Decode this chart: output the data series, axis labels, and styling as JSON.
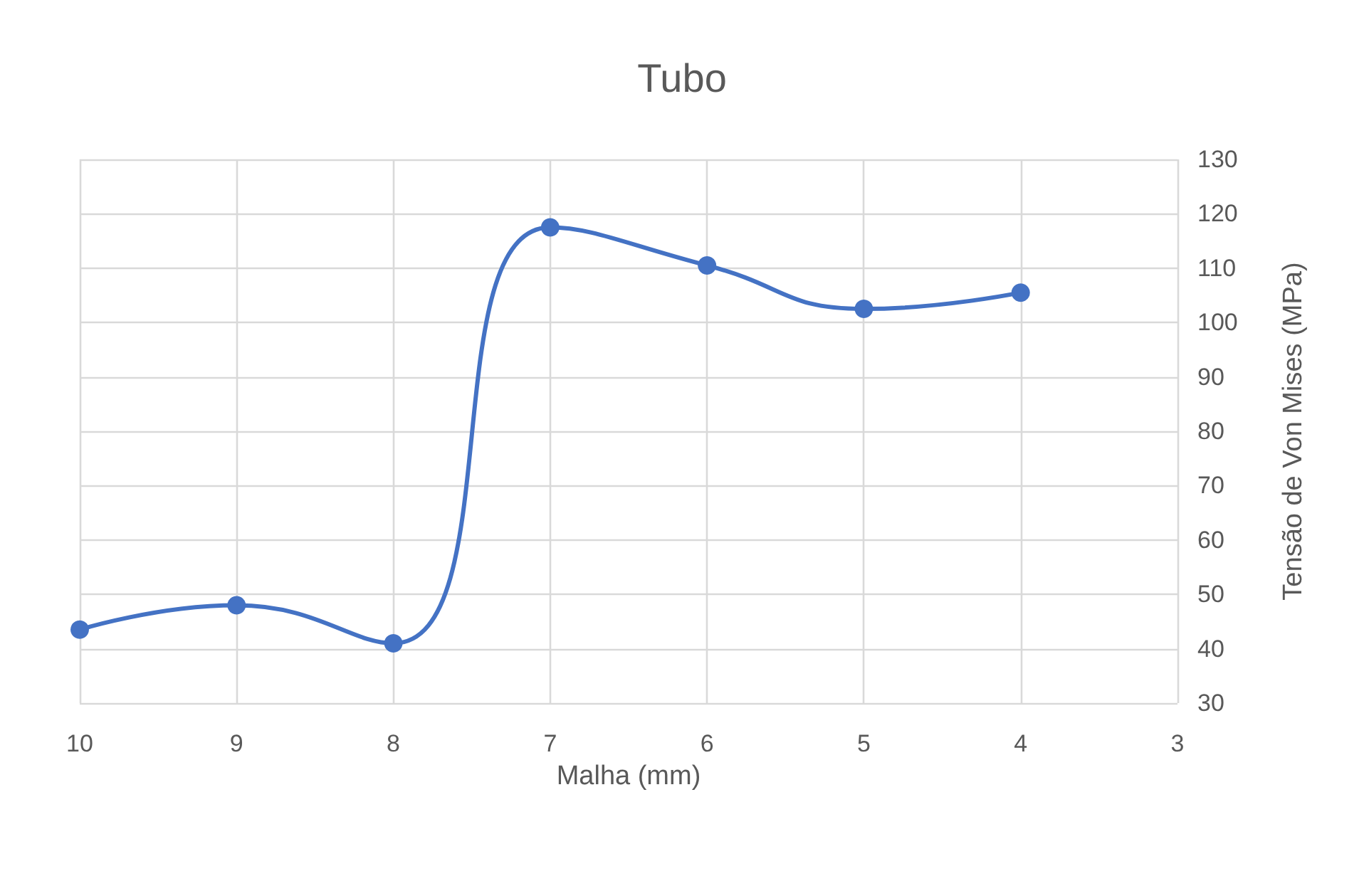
{
  "chart_data": {
    "type": "line",
    "title": "Tubo",
    "xlabel": "Malha (mm)",
    "ylabel": "Tensão de Von Mises (MPa)",
    "x": [
      10,
      9,
      8,
      7,
      6,
      5,
      4
    ],
    "series": [
      {
        "color": "#4472c4",
        "values": [
          43.5,
          48,
          41,
          117.5,
          110.5,
          102.5,
          105.5
        ]
      }
    ],
    "xlim": [
      10,
      3
    ],
    "xticks": [
      10,
      9,
      8,
      7,
      6,
      5,
      4,
      3
    ],
    "ylim": [
      30,
      130
    ],
    "yticks": [
      30,
      40,
      50,
      60,
      70,
      80,
      90,
      100,
      110,
      120,
      130
    ],
    "grid": true,
    "marker": "circle",
    "line_style": "solid"
  }
}
